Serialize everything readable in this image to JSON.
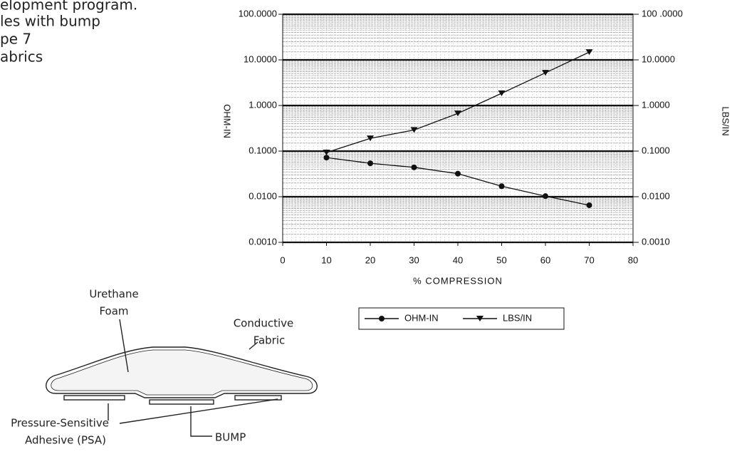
{
  "text": {
    "lines": [
      "elopment program.",
      "les with bump",
      "pe 7",
      "abrics"
    ]
  },
  "chart_data": {
    "type": "line",
    "xlabel": "% COMPRESSION",
    "ylabel": "OHM-IN",
    "y2label": "LBS/IN",
    "x": [
      10,
      20,
      30,
      40,
      50,
      60,
      70
    ],
    "series": [
      {
        "name": "OHM-IN",
        "color": "#111111",
        "marker": "circle",
        "values": [
          0.072,
          0.054,
          0.044,
          0.032,
          0.017,
          0.0103,
          0.0065
        ]
      },
      {
        "name": "LBS/IN",
        "color": "#111111",
        "marker": "triangle",
        "axis": "y2",
        "values": [
          0.093,
          0.19,
          0.29,
          0.67,
          1.85,
          5.2,
          14.8
        ]
      }
    ],
    "xlim": [
      0,
      80
    ],
    "xticks": [
      0,
      10,
      20,
      30,
      40,
      50,
      60,
      70,
      80
    ],
    "ylim": [
      0.001,
      100
    ],
    "ylog": true,
    "yticks": [
      {
        "value": 0.001,
        "label": "0.0010"
      },
      {
        "value": 0.01,
        "label": "0.0100"
      },
      {
        "value": 0.1,
        "label": "0.1000"
      },
      {
        "value": 1,
        "label": "1.0000"
      },
      {
        "value": 10,
        "label": "10.0000"
      },
      {
        "value": 100,
        "label": "100.0000"
      }
    ],
    "y2lim": [
      0.001,
      100
    ],
    "y2ticks": [
      {
        "value": 0.001,
        "label": "0.0010"
      },
      {
        "value": 0.01,
        "label": "0.0100"
      },
      {
        "value": 0.1,
        "label": "0.1000"
      },
      {
        "value": 1,
        "label": "1.0000"
      },
      {
        "value": 10,
        "label": "10.0000"
      },
      {
        "value": 100,
        "label": "100 .0000"
      }
    ],
    "grid": true,
    "legend": "bottom"
  },
  "diagram": {
    "labels": {
      "foam": [
        "Urethane",
        "Foam"
      ],
      "fabric": [
        "Conductive",
        "Fabric"
      ],
      "psa": [
        "Pressure-Sensitive",
        "Adhesive (PSA)"
      ],
      "bump": [
        "BUMP"
      ]
    }
  }
}
